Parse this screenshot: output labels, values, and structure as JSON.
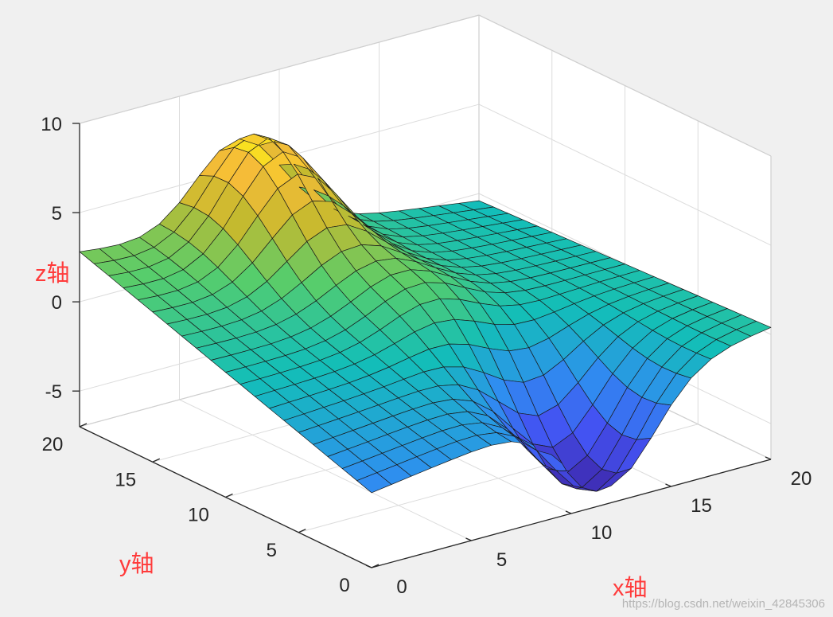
{
  "chart_data": {
    "type": "surface",
    "xlabel": "x轴",
    "ylabel": "y轴",
    "zlabel": "z轴",
    "xlim": [
      0,
      20
    ],
    "ylim": [
      0,
      20
    ],
    "zlim": [
      -7,
      10
    ],
    "x_ticks": [
      0,
      5,
      10,
      15,
      20
    ],
    "y_ticks": [
      0,
      5,
      10,
      15,
      20
    ],
    "z_ticks": [
      -5,
      0,
      5,
      10
    ],
    "grid": true,
    "colormap": "parula",
    "colors": {
      "low": "#3e26a8",
      "mid": "#13beb8",
      "high": "#f9fb0e"
    },
    "surface_peaks": [
      {
        "x": 8,
        "y": 18,
        "z": 7.5
      },
      {
        "x": 10,
        "y": 10,
        "z": 2
      },
      {
        "x": 12,
        "y": 2,
        "z": -7
      }
    ]
  },
  "watermark": "https://blog.csdn.net/weixin_42845306"
}
